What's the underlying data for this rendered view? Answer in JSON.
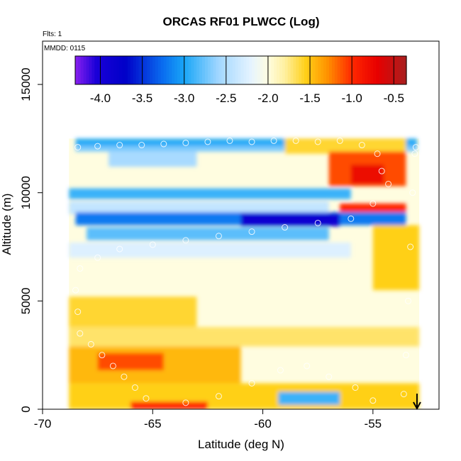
{
  "chart_data": {
    "type": "heatmap",
    "title": "ORCAS RF01 PLWCC (Log)",
    "annotations": {
      "flights": "Flts: 1",
      "date": "MMDD: 0115"
    },
    "xlabel": "Latitude (deg N)",
    "ylabel": "Altitude (m)",
    "xlim": [
      -70,
      -52
    ],
    "ylim": [
      0,
      17000
    ],
    "x_ticks": [
      -70,
      -65,
      -60,
      -55
    ],
    "x_tick_labels": [
      "-70",
      "-65",
      "-60",
      "-55"
    ],
    "y_ticks": [
      0,
      5000,
      10000,
      15000
    ],
    "y_tick_labels": [
      "0",
      "5000",
      "10000",
      "15000"
    ],
    "colorbar": {
      "range": [
        -4.3,
        -0.35
      ],
      "ticks": [
        -4.0,
        -3.5,
        -3.0,
        -2.5,
        -2.0,
        -1.5,
        -1.0,
        -0.5
      ],
      "tick_labels": [
        "-4.0",
        "-3.5",
        "-3.0",
        "-2.5",
        "-2.0",
        "-1.5",
        "-1.0",
        "-0.5"
      ],
      "color_stops": [
        {
          "value": -4.3,
          "color": "#8a20f0"
        },
        {
          "value": -4.05,
          "color": "#1a00d8"
        },
        {
          "value": -3.7,
          "color": "#0000c8"
        },
        {
          "value": -3.25,
          "color": "#0a6ef0"
        },
        {
          "value": -3.0,
          "color": "#19a6f7"
        },
        {
          "value": -2.6,
          "color": "#9fd6ff"
        },
        {
          "value": -2.2,
          "color": "#e6f4ff"
        },
        {
          "value": -2.0,
          "color": "#fffde0"
        },
        {
          "value": -1.8,
          "color": "#fff0a0"
        },
        {
          "value": -1.55,
          "color": "#ffd018"
        },
        {
          "value": -1.3,
          "color": "#ff9400"
        },
        {
          "value": -1.0,
          "color": "#ff2800"
        },
        {
          "value": -0.7,
          "color": "#e80000"
        },
        {
          "value": -0.35,
          "color": "#a82020"
        }
      ]
    },
    "field_coverage": {
      "lat_min": -68.8,
      "lat_max": -52.9,
      "alt_min": 0,
      "alt_max": 12500
    },
    "field_bands": [
      {
        "alt": [
          12150,
          12500
        ],
        "lat": [
          -68.5,
          -53.0
        ],
        "value": -2.95
      },
      {
        "alt": [
          11900,
          12150
        ],
        "lat": [
          -68.5,
          -53.0
        ],
        "value": -2.7
      },
      {
        "alt": [
          11800,
          12500
        ],
        "lat": [
          -59.0,
          -53.5
        ],
        "value": -1.6
      },
      {
        "alt": [
          11200,
          11900
        ],
        "lat": [
          -67.0,
          -63.0
        ],
        "value": -2.55
      },
      {
        "alt": [
          10300,
          11900
        ],
        "lat": [
          -57.0,
          -53.5
        ],
        "value": -1.1
      },
      {
        "alt": [
          10400,
          11300
        ],
        "lat": [
          -56.0,
          -54.5
        ],
        "value": -0.75
      },
      {
        "alt": [
          9700,
          10200
        ],
        "lat": [
          -68.8,
          -56.0
        ],
        "value": -2.9
      },
      {
        "alt": [
          9000,
          9600
        ],
        "lat": [
          -68.8,
          -57.0
        ],
        "value": -2.4
      },
      {
        "alt": [
          9100,
          9500
        ],
        "lat": [
          -56.5,
          -53.5
        ],
        "value": -1.0
      },
      {
        "alt": [
          8500,
          9100
        ],
        "lat": [
          -68.5,
          -53.5
        ],
        "value": -3.2
      },
      {
        "alt": [
          8450,
          9050
        ],
        "lat": [
          -61.0,
          -56.5
        ],
        "value": -3.9
      },
      {
        "alt": [
          7800,
          8400
        ],
        "lat": [
          -68.0,
          -57.0
        ],
        "value": -2.8
      },
      {
        "alt": [
          7000,
          7700
        ],
        "lat": [
          -68.8,
          -56.0
        ],
        "value": -2.25
      },
      {
        "alt": [
          5500,
          8500
        ],
        "lat": [
          -55.0,
          -52.9
        ],
        "value": -1.55
      },
      {
        "alt": [
          3800,
          5200
        ],
        "lat": [
          -68.8,
          -63.0
        ],
        "value": -1.6
      },
      {
        "alt": [
          2900,
          3800
        ],
        "lat": [
          -68.8,
          -52.9
        ],
        "value": -1.7
      },
      {
        "alt": [
          1200,
          2900
        ],
        "lat": [
          -68.8,
          -61.0
        ],
        "value": -1.45
      },
      {
        "alt": [
          1800,
          2600
        ],
        "lat": [
          -67.5,
          -64.5
        ],
        "value": -1.1
      },
      {
        "alt": [
          0,
          1200
        ],
        "lat": [
          -68.8,
          -52.9
        ],
        "value": -1.55
      },
      {
        "alt": [
          200,
          800
        ],
        "lat": [
          -59.3,
          -56.5
        ],
        "value": -2.9
      },
      {
        "alt": [
          0,
          350
        ],
        "lat": [
          -66.0,
          -62.5
        ],
        "value": -1.0
      }
    ],
    "flight_track": [
      [
        -68.4,
        12100
      ],
      [
        -67.5,
        12150
      ],
      [
        -66.5,
        12200
      ],
      [
        -65.5,
        12200
      ],
      [
        -64.5,
        12250
      ],
      [
        -63.5,
        12300
      ],
      [
        -62.5,
        12350
      ],
      [
        -61.5,
        12400
      ],
      [
        -60.5,
        12350
      ],
      [
        -59.5,
        12400
      ],
      [
        -58.5,
        12400
      ],
      [
        -57.5,
        12350
      ],
      [
        -56.5,
        12400
      ],
      [
        -55.5,
        12200
      ],
      [
        -54.8,
        11800
      ],
      [
        -54.6,
        11000
      ],
      [
        -54.3,
        10400
      ],
      [
        -55.0,
        9500
      ],
      [
        -56.0,
        8800
      ],
      [
        -57.5,
        8600
      ],
      [
        -59.0,
        8400
      ],
      [
        -60.5,
        8200
      ],
      [
        -62.0,
        8000
      ],
      [
        -63.5,
        7800
      ],
      [
        -65.0,
        7600
      ],
      [
        -66.5,
        7400
      ],
      [
        -67.5,
        7000
      ],
      [
        -68.3,
        6500
      ],
      [
        -68.5,
        5500
      ],
      [
        -68.4,
        4500
      ],
      [
        -68.3,
        3500
      ],
      [
        -67.8,
        3000
      ],
      [
        -67.3,
        2500
      ],
      [
        -66.8,
        2000
      ],
      [
        -66.3,
        1500
      ],
      [
        -65.8,
        1000
      ],
      [
        -65.3,
        500
      ],
      [
        -63.5,
        300
      ],
      [
        -62.0,
        600
      ],
      [
        -60.5,
        1200
      ],
      [
        -59.2,
        1800
      ],
      [
        -58.0,
        2000
      ],
      [
        -57.0,
        1500
      ],
      [
        -55.8,
        1000
      ],
      [
        -55.0,
        400
      ],
      [
        -53.6,
        700
      ],
      [
        -53.5,
        2500
      ],
      [
        -53.4,
        5000
      ],
      [
        -53.3,
        7500
      ],
      [
        -53.2,
        10000
      ],
      [
        -53.1,
        11800
      ],
      [
        -53.05,
        12100
      ]
    ],
    "arrow": {
      "lat": -53.0,
      "direction": "down"
    }
  }
}
